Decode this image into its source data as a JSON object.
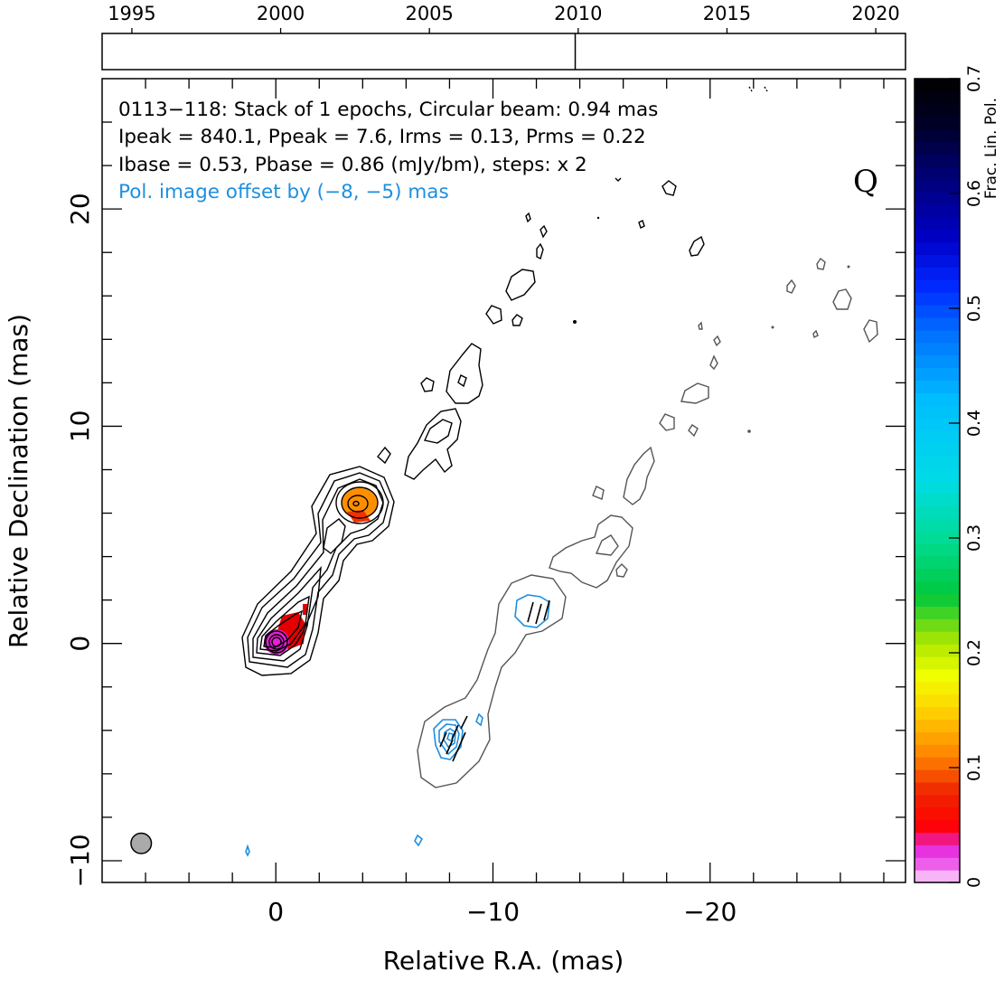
{
  "chart_data": {
    "type": "heatmap",
    "timeline": {
      "ticks": [
        "1995",
        "2000",
        "2005",
        "2010",
        "2015",
        "2020"
      ],
      "range": [
        1994,
        2021
      ],
      "epoch_marks": [
        2009.9
      ]
    },
    "annotation": {
      "line1": "0113−118: Stack of 1 epochs, Circular beam: 0.94 mas",
      "line2": "Ipeak = 840.1, Ppeak = 7.6, Irms = 0.13, Prms = 0.22",
      "line3": "Ibase = 0.53, Pbase = 0.86 (mJy/bm), steps: x 2",
      "line4": "Pol. image offset by (−8, −5) mas",
      "band": "Q"
    },
    "xlabel": "Relative R.A. (mas)",
    "ylabel": "Relative Declination (mas)",
    "xlim": [
      8,
      -29
    ],
    "ylim": [
      -11,
      26
    ],
    "x_ticks": [
      {
        "v": 0,
        "t": "0"
      },
      {
        "v": -10,
        "t": "−10"
      },
      {
        "v": -20,
        "t": "−20"
      }
    ],
    "y_ticks": [
      {
        "v": -10,
        "t": "−10"
      },
      {
        "v": 0,
        "t": "0"
      },
      {
        "v": 10,
        "t": "10"
      },
      {
        "v": 20,
        "t": "20"
      }
    ],
    "colorbar": {
      "label": "Frac. Lin. Pol.",
      "range": [
        0,
        0.7
      ],
      "ticks": [
        "0",
        "0.1",
        "0.2",
        "0.3",
        "0.4",
        "0.5",
        "0.6",
        "0.7"
      ]
    },
    "beam_fwhm_mas": 0.94,
    "beam_position": [
      6.2,
      -9.2
    ],
    "components": [
      {
        "name": "core",
        "x": 0,
        "y": 0,
        "frac_pol": 0.02
      },
      {
        "name": "knot",
        "x": -3.7,
        "y": 6.4,
        "frac_pol": 0.12
      }
    ],
    "colors": {
      "total_intensity": "#000000",
      "shifted_intensity": "#555555",
      "polarization": "#1e8fe0",
      "offset_text": "#1e8fe0"
    }
  }
}
